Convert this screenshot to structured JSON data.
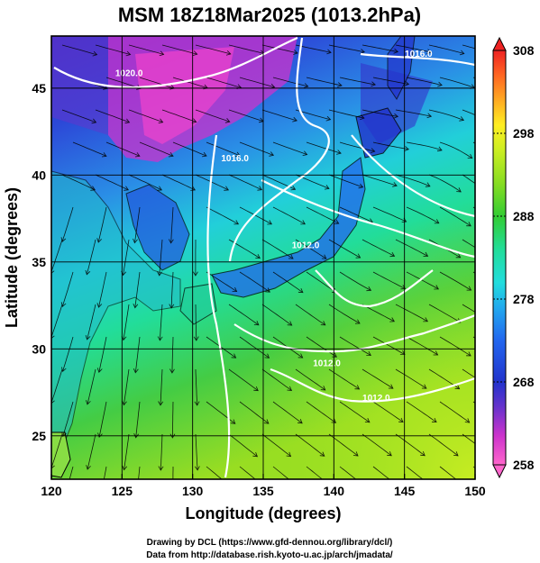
{
  "title": "MSM 18Z18Mar2025 (1013.2hPa)",
  "map": {
    "lon_range": [
      120,
      150
    ],
    "lat_range": [
      22.5,
      48
    ],
    "xlabel": "Longitude (degrees)",
    "ylabel": "Latitude  (degrees)",
    "x_ticks": [
      {
        "value": 120,
        "label": "120"
      },
      {
        "value": 125,
        "label": "125"
      },
      {
        "value": 130,
        "label": "130"
      },
      {
        "value": 135,
        "label": "135"
      },
      {
        "value": 140,
        "label": "140"
      },
      {
        "value": 145,
        "label": "145"
      },
      {
        "value": 150,
        "label": "150"
      }
    ],
    "y_ticks": [
      {
        "value": 25,
        "label": "25"
      },
      {
        "value": 30,
        "label": "30"
      },
      {
        "value": 35,
        "label": "35"
      },
      {
        "value": 40,
        "label": "40"
      },
      {
        "value": 45,
        "label": "45"
      }
    ],
    "gridlines": true
  },
  "colorbar": {
    "min": 258,
    "max": 308,
    "labels": [
      {
        "value": 308,
        "label": "308"
      },
      {
        "value": 298,
        "label": "298"
      },
      {
        "value": 288,
        "label": "288"
      },
      {
        "value": 278,
        "label": "278"
      },
      {
        "value": 268,
        "label": "268"
      },
      {
        "value": 258,
        "label": "258"
      }
    ],
    "colors": [
      "#ff66cc",
      "#cc33cc",
      "#6633cc",
      "#2233cc",
      "#2266ee",
      "#22aaee",
      "#22dddd",
      "#22dd99",
      "#33cc33",
      "#88dd22",
      "#ccee22",
      "#ffee22",
      "#ffaa22",
      "#ff6622",
      "#ee2222"
    ]
  },
  "isobars": [
    {
      "label": "1020.0",
      "lon": 125.5,
      "lat": 45.7
    },
    {
      "label": "1016.0",
      "lon": 146.0,
      "lat": 46.8
    },
    {
      "label": "1016.0",
      "lon": 133.0,
      "lat": 40.8
    },
    {
      "label": "1012.0",
      "lon": 138.0,
      "lat": 35.8
    },
    {
      "label": "1012.0",
      "lon": 139.5,
      "lat": 29.0
    },
    {
      "label": "1012.0",
      "lon": 143.0,
      "lat": 27.0
    }
  ],
  "credits": [
    "Drawing by DCL (https://www.gfd-dennou.org/library/dcl/)",
    "Data from http://database.rish.kyoto-u.ac.jp/arch/jmadata/"
  ]
}
